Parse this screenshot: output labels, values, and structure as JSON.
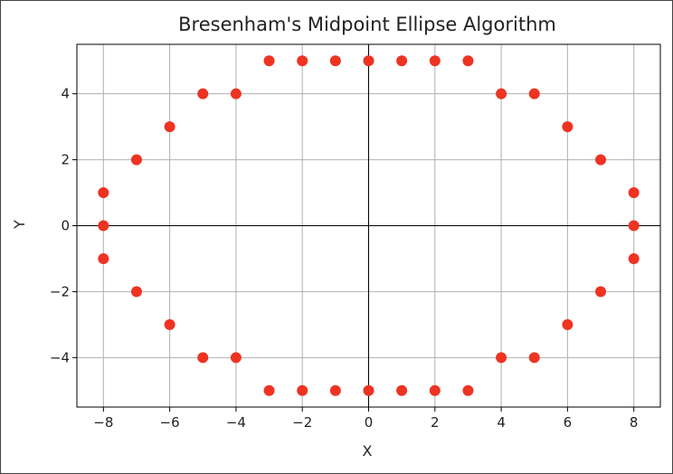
{
  "chart_data": {
    "type": "scatter",
    "title": "Bresenham's Midpoint Ellipse Algorithm",
    "xlabel": "X",
    "ylabel": "Y",
    "xlim": [
      -8.8,
      8.8
    ],
    "ylim": [
      -5.5,
      5.5
    ],
    "xticks": [
      -8,
      -6,
      -4,
      -2,
      0,
      2,
      4,
      6,
      8
    ],
    "yticks": [
      -4,
      -2,
      0,
      2,
      4
    ],
    "xtick_labels": [
      "−8",
      "−6",
      "−4",
      "−2",
      "0",
      "2",
      "4",
      "6",
      "8"
    ],
    "ytick_labels": [
      "−4",
      "−2",
      "0",
      "2",
      "4"
    ],
    "grid": true,
    "point_color": "#ee3322",
    "axis_line_color": "#000000",
    "grid_color": "#b0b0b0",
    "points": [
      [
        -3,
        5
      ],
      [
        -2,
        5
      ],
      [
        -1,
        5
      ],
      [
        0,
        5
      ],
      [
        1,
        5
      ],
      [
        2,
        5
      ],
      [
        3,
        5
      ],
      [
        -5,
        4
      ],
      [
        -4,
        4
      ],
      [
        4,
        4
      ],
      [
        5,
        4
      ],
      [
        -6,
        3
      ],
      [
        6,
        3
      ],
      [
        -7,
        2
      ],
      [
        7,
        2
      ],
      [
        -8,
        1
      ],
      [
        8,
        1
      ],
      [
        -8,
        0
      ],
      [
        8,
        0
      ],
      [
        -8,
        -1
      ],
      [
        8,
        -1
      ],
      [
        -7,
        -2
      ],
      [
        7,
        -2
      ],
      [
        -6,
        -3
      ],
      [
        6,
        -3
      ],
      [
        -5,
        -4
      ],
      [
        -4,
        -4
      ],
      [
        4,
        -4
      ],
      [
        5,
        -4
      ],
      [
        -3,
        -5
      ],
      [
        -2,
        -5
      ],
      [
        -1,
        -5
      ],
      [
        0,
        -5
      ],
      [
        1,
        -5
      ],
      [
        2,
        -5
      ],
      [
        3,
        -5
      ]
    ]
  }
}
